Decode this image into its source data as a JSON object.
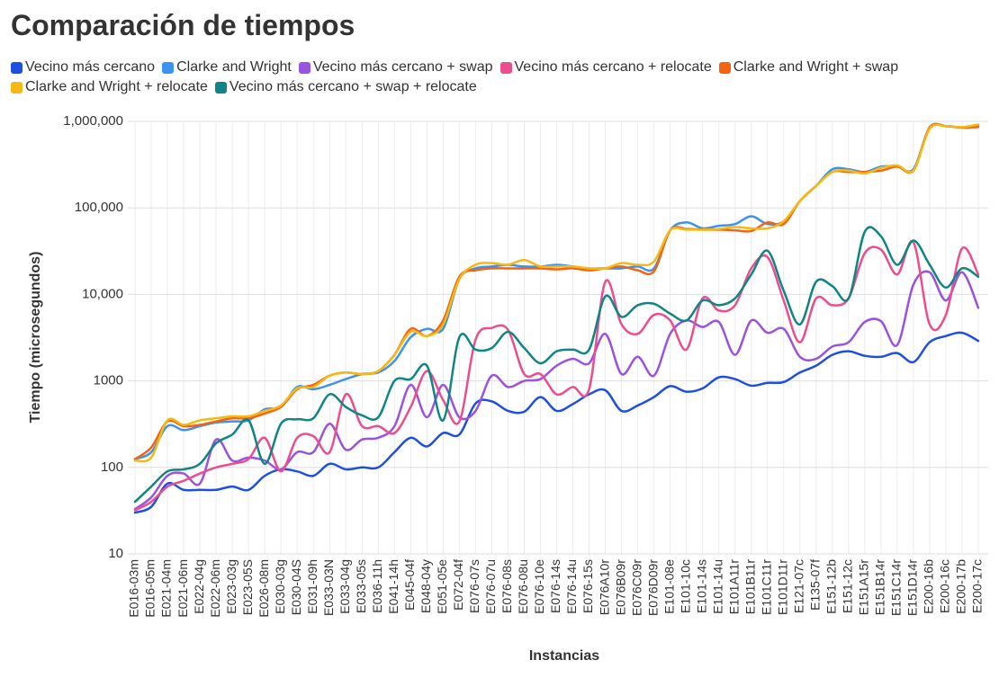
{
  "chart_data": {
    "type": "line",
    "title": "Comparación de tiempos",
    "x_label": "Instancias",
    "y_label": "Tiempo (microsegundos)",
    "log_scale": true,
    "grid": true,
    "ylim": [
      10,
      1000000
    ],
    "yticks": [
      10,
      100,
      1000,
      {
        "value": 10000,
        "label": "10,000"
      },
      {
        "value": 100000,
        "label": "100,000"
      },
      {
        "value": 1000000,
        "label": "1,000,000"
      }
    ],
    "categories": [
      "E016-03m",
      "E016-05m",
      "E021-04m",
      "E021-06m",
      "E022-04g",
      "E022-06m",
      "E023-03g",
      "E023-05S",
      "E026-08m",
      "E030-03g",
      "E030-04S",
      "E031-09h",
      "E033-03N",
      "E033-04g",
      "E033-05s",
      "E036-11h",
      "E041-14h",
      "E045-04f",
      "E048-04y",
      "E051-05e",
      "E072-04f",
      "E076-07s",
      "E076-07u",
      "E076-08s",
      "E076-08u",
      "E076-10e",
      "E076-14s",
      "E076-14u",
      "E076-15s",
      "E076A10r",
      "E076B09r",
      "E076C09r",
      "E076D09r",
      "E101-08e",
      "E101-10c",
      "E101-14s",
      "E101-14u",
      "E101A11r",
      "E101B11r",
      "E101C11r",
      "E101D11r",
      "E121-07c",
      "E135-07f",
      "E151-12b",
      "E151-12c",
      "E151A15r",
      "E151B14r",
      "E151C14r",
      "E151D14r",
      "E200-16b",
      "E200-16c",
      "E200-17b",
      "E200-17c"
    ],
    "series": [
      {
        "name": "Vecino más cercano",
        "color": "#1f4fe0",
        "values": [
          30,
          35,
          65,
          55,
          55,
          55,
          60,
          55,
          80,
          95,
          90,
          80,
          110,
          95,
          100,
          100,
          150,
          220,
          175,
          250,
          240,
          550,
          580,
          450,
          440,
          650,
          450,
          540,
          700,
          780,
          450,
          520,
          650,
          870,
          750,
          820,
          1100,
          1050,
          880,
          950,
          970,
          1250,
          1500,
          2000,
          2200,
          1950,
          1900,
          2100,
          1650,
          2800,
          3300,
          3600,
          2900
        ]
      },
      {
        "name": "Clarke and Wright",
        "color": "#3d92f0",
        "values": [
          125,
          150,
          300,
          270,
          300,
          330,
          340,
          350,
          470,
          500,
          850,
          800,
          900,
          1050,
          1200,
          1250,
          1700,
          3200,
          4000,
          4000,
          15000,
          20000,
          21000,
          22000,
          21000,
          21000,
          22000,
          21000,
          20000,
          20000,
          20000,
          21000,
          20000,
          55000,
          68000,
          58000,
          62000,
          65000,
          80000,
          65000,
          70000,
          120000,
          180000,
          280000,
          280000,
          260000,
          300000,
          300000,
          280000,
          850000,
          880000,
          850000,
          900000
        ]
      },
      {
        "name": "Vecino más cercano + swap",
        "color": "#9a52e0",
        "values": [
          33,
          45,
          80,
          85,
          65,
          210,
          120,
          130,
          120,
          95,
          150,
          150,
          320,
          160,
          210,
          220,
          300,
          900,
          380,
          900,
          380,
          450,
          1150,
          850,
          1000,
          1050,
          1500,
          1800,
          1600,
          3500,
          1200,
          1900,
          1150,
          3500,
          5000,
          4200,
          4800,
          2000,
          5000,
          3600,
          4000,
          1900,
          1800,
          2500,
          2800,
          4800,
          4900,
          2600,
          13000,
          18000,
          8500,
          18000,
          7000
        ]
      },
      {
        "name": "Vecino más cercano + relocate",
        "color": "#ec4d8d",
        "values": [
          32,
          40,
          60,
          70,
          85,
          100,
          110,
          125,
          220,
          90,
          220,
          230,
          150,
          700,
          300,
          300,
          250,
          500,
          1300,
          600,
          340,
          3000,
          4100,
          3900,
          1200,
          1200,
          700,
          850,
          800,
          14000,
          4500,
          3500,
          5800,
          5000,
          2300,
          9000,
          6500,
          7500,
          20000,
          27000,
          8500,
          2800,
          9000,
          7500,
          9000,
          30000,
          33000,
          17000,
          40000,
          4500,
          5800,
          34000,
          17000
        ]
      },
      {
        "name": "Clarke and Wright + swap",
        "color": "#f26412",
        "values": [
          125,
          170,
          340,
          300,
          310,
          340,
          370,
          370,
          420,
          500,
          800,
          900,
          1150,
          1250,
          1200,
          1300,
          2000,
          4000,
          3300,
          5000,
          16000,
          19000,
          20000,
          20000,
          20000,
          20000,
          19500,
          20000,
          19000,
          20000,
          21000,
          19000,
          18500,
          55000,
          57000,
          56000,
          56000,
          55000,
          54000,
          68000,
          65000,
          120000,
          180000,
          260000,
          260000,
          260000,
          270000,
          300000,
          270000,
          850000,
          880000,
          850000,
          860000
        ]
      },
      {
        "name": "Clarke and Wright + relocate",
        "color": "#f4b912",
        "values": [
          120,
          130,
          350,
          310,
          350,
          370,
          390,
          390,
          450,
          520,
          820,
          850,
          1150,
          1250,
          1200,
          1300,
          2000,
          3700,
          3300,
          4500,
          15000,
          22000,
          23000,
          22000,
          25000,
          21000,
          21000,
          21000,
          20000,
          20000,
          23000,
          22000,
          24000,
          55000,
          56000,
          56000,
          57000,
          60000,
          58000,
          58000,
          70000,
          120000,
          180000,
          260000,
          270000,
          250000,
          290000,
          310000,
          270000,
          820000,
          880000,
          860000,
          920000
        ]
      },
      {
        "name": "Vecino más cercano + swap + relocate",
        "color": "#0f8585",
        "values": [
          40,
          60,
          90,
          95,
          110,
          190,
          240,
          350,
          110,
          320,
          360,
          370,
          700,
          500,
          400,
          380,
          1000,
          1050,
          1500,
          350,
          3200,
          2300,
          2400,
          3700,
          2400,
          1600,
          2200,
          2300,
          2300,
          9500,
          5500,
          7500,
          7800,
          6000,
          5000,
          8500,
          7500,
          9000,
          17000,
          32000,
          11000,
          4500,
          14000,
          12500,
          9000,
          53000,
          47000,
          22000,
          42000,
          22000,
          12000,
          20000,
          16000
        ]
      }
    ]
  }
}
